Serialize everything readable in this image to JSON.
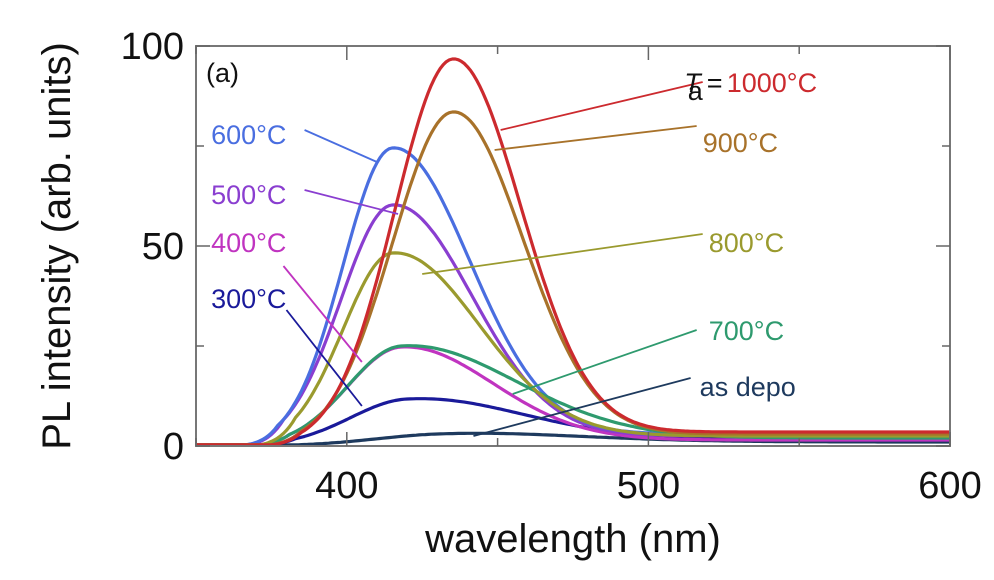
{
  "chart_data": {
    "type": "line",
    "title": "",
    "panel_label": "(a)",
    "xlabel": "wavelength (nm)",
    "ylabel": "PL intensity (arb. units)",
    "xlim": [
      350,
      600
    ],
    "ylim": [
      0,
      100
    ],
    "xticks": [
      400,
      500,
      600
    ],
    "xtick_labels": [
      "400",
      "500",
      "600"
    ],
    "xminor_ticks": [
      350,
      450,
      550
    ],
    "yticks": [
      0,
      50,
      100
    ],
    "ytick_labels": [
      "0",
      "50",
      "100"
    ],
    "yminor_ticks": [
      25,
      75
    ],
    "grid": false,
    "legend": "inline-annotations",
    "label_prefix": "T",
    "label_prefix_sub": "a",
    "label_prefix_eq": "=",
    "series": [
      {
        "name": "1000°C",
        "color": "#cc2a2e",
        "peak_x": 435,
        "peak_y": 95,
        "onset": 370,
        "width_l": 26,
        "width_r": 30,
        "tail": 3.5,
        "label": {
          "text": "1000°C",
          "x": 520,
          "y": 91
        },
        "leader": {
          "from": [
            451,
            79
          ],
          "to": [
            518,
            91
          ]
        }
      },
      {
        "name": "900°C",
        "color": "#a8722a",
        "peak_x": 435,
        "peak_y": 82,
        "onset": 370,
        "width_l": 27,
        "width_r": 31,
        "tail": 3,
        "label": {
          "text": "900°C",
          "x": 518,
          "y": 76
        },
        "leader": {
          "from": [
            449,
            74
          ],
          "to": [
            516,
            80
          ]
        }
      },
      {
        "name": "800°C",
        "color": "#9a9a2e",
        "peak_x": 415,
        "peak_y": 47,
        "onset": 368,
        "width_l": 22,
        "width_r": 38,
        "tail": 2.5,
        "label": {
          "text": "800°C",
          "x": 520,
          "y": 51
        },
        "leader": {
          "from": [
            425,
            43
          ],
          "to": [
            518,
            53
          ]
        }
      },
      {
        "name": "700°C",
        "color": "#2e9a6e",
        "peak_x": 418,
        "peak_y": 24,
        "onset": 366,
        "width_l": 24,
        "width_r": 50,
        "tail": 2,
        "label": {
          "text": "700°C",
          "x": 520,
          "y": 29
        },
        "leader": {
          "from": [
            455,
            13
          ],
          "to": [
            516,
            29
          ]
        }
      },
      {
        "name": "600°C",
        "color": "#4a6ee0",
        "peak_x": 415,
        "peak_y": 73,
        "onset": 362,
        "width_l": 22,
        "width_r": 34,
        "tail": 3,
        "label": {
          "text": "600°C",
          "x": 355,
          "y": 78
        },
        "leader": {
          "from": [
            386,
            79
          ],
          "to": [
            410,
            71
          ]
        }
      },
      {
        "name": "500°C",
        "color": "#8a3ed0",
        "peak_x": 415,
        "peak_y": 59,
        "onset": 364,
        "width_l": 23,
        "width_r": 35,
        "tail": 2.5,
        "label": {
          "text": "500°C",
          "x": 355,
          "y": 63
        },
        "leader": {
          "from": [
            386,
            64
          ],
          "to": [
            417,
            58
          ]
        }
      },
      {
        "name": "400°C",
        "color": "#c034c0",
        "peak_x": 418,
        "peak_y": 24,
        "onset": 366,
        "width_l": 24,
        "width_r": 40,
        "tail": 1.5,
        "label": {
          "text": "400°C",
          "x": 355,
          "y": 51
        },
        "leader": {
          "from": [
            379,
            45
          ],
          "to": [
            405,
            21
          ]
        }
      },
      {
        "name": "300°C",
        "color": "#1a1a9a",
        "peak_x": 420,
        "peak_y": 11,
        "onset": 368,
        "width_l": 26,
        "width_r": 50,
        "tail": 1.5,
        "label": {
          "text": "300°C",
          "x": 355,
          "y": 37
        },
        "leader": {
          "from": [
            380,
            34
          ],
          "to": [
            405,
            10
          ]
        }
      },
      {
        "name": "as depo",
        "color": "#1e3a5e",
        "peak_x": 430,
        "peak_y": 2.5,
        "onset": 370,
        "width_l": 30,
        "width_r": 60,
        "tail": 1,
        "label": {
          "text": "as depo",
          "x": 517,
          "y": 15
        },
        "leader": {
          "from": [
            442,
            2.5
          ],
          "to": [
            514,
            17
          ]
        }
      }
    ]
  }
}
